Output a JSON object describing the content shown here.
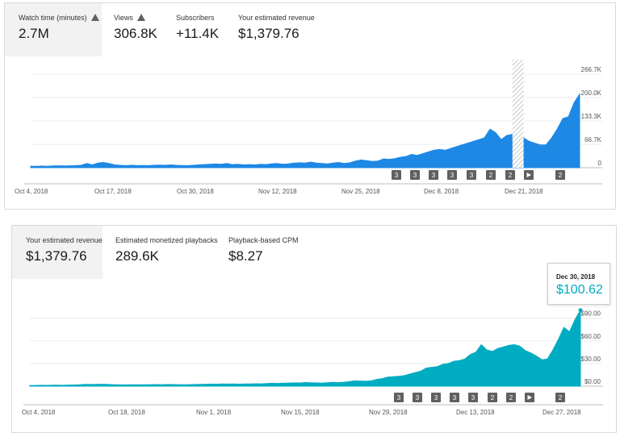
{
  "panel1": {
    "metrics": [
      {
        "label": "Watch time (minutes)",
        "value": "2.7M",
        "warning": true,
        "selected": true
      },
      {
        "label": "Views",
        "value": "306.8K",
        "warning": true,
        "selected": false
      },
      {
        "label": "Subscribers",
        "value": "+11.4K",
        "warning": false,
        "selected": false
      },
      {
        "label": "Your estimated revenue",
        "value": "$1,379.76",
        "warning": false,
        "selected": false
      }
    ]
  },
  "panel2": {
    "metrics": [
      {
        "label": "Your estimated revenue",
        "value": "$1,379.76",
        "selected": true
      },
      {
        "label": "Estimated monetized playbacks",
        "value": "289.6K",
        "selected": false
      },
      {
        "label": "Playback-based CPM",
        "value": "$8.27",
        "selected": false
      }
    ],
    "tooltip": {
      "date": "Dec 30, 2018",
      "value": "$100.62"
    }
  },
  "chart_data": [
    {
      "type": "area",
      "series": [
        {
          "color": "#1e88e5",
          "values": [
            4000,
            4000,
            4500,
            4200,
            5000,
            5500,
            5000,
            5500,
            6000,
            7000,
            12000,
            8000,
            13000,
            15000,
            12000,
            8000,
            7000,
            6000,
            7000,
            6000,
            6500,
            6000,
            7000,
            7500,
            7000,
            8000,
            7000,
            6500,
            6000,
            7000,
            8000,
            9000,
            10000,
            11000,
            10000,
            12000,
            9000,
            10000,
            8000,
            9000,
            8000,
            10000,
            9000,
            11000,
            12000,
            10000,
            11000,
            13000,
            14000,
            13000,
            16000,
            13000,
            12000,
            11000,
            13000,
            15000,
            12000,
            14000,
            19000,
            22000,
            20000,
            18000,
            19000,
            25000,
            24000,
            26000,
            30000,
            32000,
            38000,
            35000,
            40000,
            45000,
            50000,
            52000,
            50000,
            55000,
            60000,
            65000,
            70000,
            75000,
            80000,
            85000,
            110000,
            100000,
            80000,
            92000,
            95000,
            90000,
            85000,
            75000,
            70000,
            65000,
            65000,
            85000,
            110000,
            140000,
            145000,
            185000,
            210000
          ]
        }
      ],
      "x_labels": [
        "Oct 4, 2018",
        "Oct 17, 2018",
        "Oct 30, 2018",
        "Nov 12, 2018",
        "Nov 25, 2018",
        "Dec 8, 2018",
        "Dec 21, 2018"
      ],
      "y_ticks": [
        "0",
        "66.7K",
        "133.3K",
        "200.0K",
        "266.7K"
      ],
      "ylim": [
        0,
        266700
      ],
      "grid": true,
      "hatched_range": [
        86,
        88
      ],
      "markers": [
        "3",
        "3",
        "3",
        "3",
        "3",
        "2",
        "2",
        "play",
        "2"
      ]
    },
    {
      "type": "area",
      "series": [
        {
          "color": "#00acc1",
          "values": [
            1,
            1,
            1.2,
            1.1,
            1.3,
            1.4,
            1.2,
            1.5,
            1.6,
            1.8,
            2.5,
            2.2,
            2.4,
            2.6,
            2.4,
            2.0,
            1.8,
            1.7,
            1.9,
            1.8,
            1.9,
            1.8,
            2.0,
            2.1,
            2.0,
            2.2,
            2.1,
            2.0,
            1.9,
            2.0,
            2.2,
            2.4,
            2.6,
            2.8,
            2.7,
            3.0,
            2.8,
            2.9,
            2.7,
            3.0,
            2.9,
            3.2,
            3.1,
            3.5,
            3.8,
            3.6,
            3.9,
            4.2,
            4.4,
            4.3,
            4.8,
            4.5,
            4.4,
            4.2,
            4.6,
            5.0,
            4.8,
            5.2,
            6.0,
            7.0,
            6.8,
            6.5,
            7.0,
            9.0,
            10.0,
            12.0,
            12.5,
            13.0,
            14.0,
            16.0,
            18.0,
            20.0,
            24.0,
            25.0,
            26.0,
            29.0,
            30.0,
            33.0,
            34.0,
            36.0,
            42.0,
            45.0,
            55.0,
            48.0,
            46.0,
            50.0,
            52.0,
            54.0,
            55.0,
            53.0,
            47.0,
            44.0,
            40.0,
            35.0,
            36.0,
            48.0,
            62.0,
            78.0,
            72.0,
            88.0,
            100.62
          ]
        }
      ],
      "x_labels": [
        "Oct 4, 2018",
        "Oct 18, 2018",
        "Nov 1, 2018",
        "Nov 15, 2018",
        "Nov 29, 2018",
        "Dec 13, 2018",
        "Dec 27, 2018"
      ],
      "y_ticks": [
        "$0.00",
        "$30.00",
        "$60.00",
        "$90.00"
      ],
      "ylim": [
        0,
        110
      ],
      "grid": true,
      "markers": [
        "3",
        "3",
        "3",
        "3",
        "3",
        "2",
        "2",
        "play",
        "2"
      ]
    }
  ]
}
